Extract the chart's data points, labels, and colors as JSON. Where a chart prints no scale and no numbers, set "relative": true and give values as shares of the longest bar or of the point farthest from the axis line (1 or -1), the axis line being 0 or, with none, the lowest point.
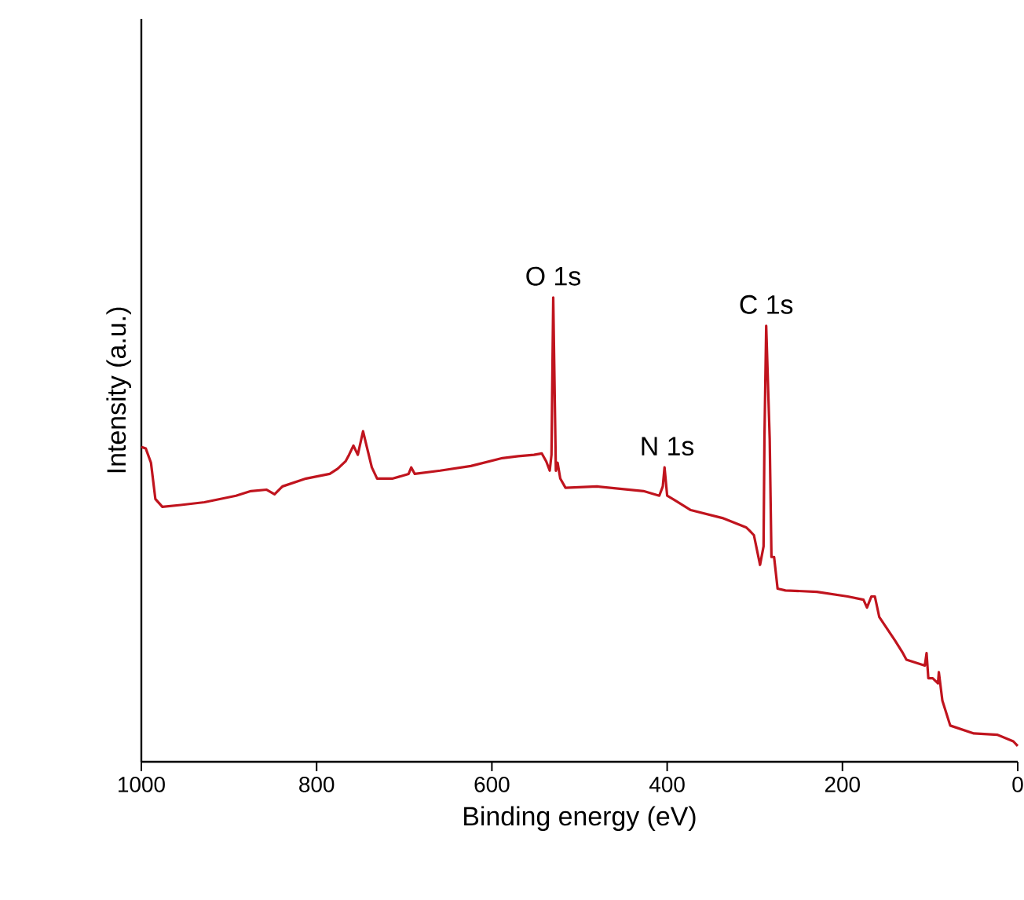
{
  "chart_data": {
    "type": "line",
    "relative": true,
    "xlabel": "Binding energy (eV)",
    "ylabel": "Intensity (a.u.)",
    "xlim": [
      1000,
      0
    ],
    "xticks": [
      1000,
      800,
      600,
      400,
      200,
      0
    ],
    "x": [
      1000,
      995,
      989,
      984,
      976,
      955,
      928,
      892,
      875,
      857,
      848,
      839,
      812,
      785,
      776,
      767,
      763,
      758,
      753,
      747,
      744,
      737,
      731,
      713,
      695,
      692,
      688,
      659,
      624,
      588,
      570,
      552,
      543,
      538,
      534,
      532,
      530,
      527,
      525,
      522,
      516,
      480,
      427,
      409,
      405,
      403,
      400,
      391,
      373,
      337,
      310,
      306,
      301,
      294,
      290,
      289,
      287,
      283,
      281,
      278,
      274,
      265,
      229,
      194,
      176,
      172,
      167,
      163,
      158,
      140,
      131,
      127,
      106,
      104,
      102,
      97,
      91,
      90,
      86,
      77,
      50,
      23,
      5,
      0
    ],
    "series": [
      {
        "color": "#c0141e",
        "values": [
          0.678,
          0.675,
          0.644,
          0.566,
          0.549,
          0.553,
          0.559,
          0.573,
          0.583,
          0.586,
          0.576,
          0.593,
          0.61,
          0.62,
          0.631,
          0.647,
          0.661,
          0.681,
          0.661,
          0.712,
          0.688,
          0.634,
          0.61,
          0.61,
          0.62,
          0.634,
          0.62,
          0.627,
          0.637,
          0.654,
          0.658,
          0.661,
          0.664,
          0.647,
          0.627,
          0.661,
          1.0,
          0.627,
          0.644,
          0.61,
          0.59,
          0.593,
          0.583,
          0.573,
          0.593,
          0.634,
          0.573,
          0.563,
          0.542,
          0.525,
          0.505,
          0.498,
          0.488,
          0.424,
          0.464,
          0.695,
          0.939,
          0.695,
          0.441,
          0.441,
          0.373,
          0.369,
          0.366,
          0.356,
          0.349,
          0.332,
          0.356,
          0.356,
          0.312,
          0.261,
          0.234,
          0.22,
          0.207,
          0.234,
          0.18,
          0.18,
          0.169,
          0.193,
          0.132,
          0.078,
          0.061,
          0.058,
          0.044,
          0.034
        ]
      }
    ],
    "annotations": [
      {
        "text": "O 1s",
        "x": 530,
        "y": 1.0
      },
      {
        "text": "N 1s",
        "x": 400,
        "y": 0.634
      },
      {
        "text": "C 1s",
        "x": 287,
        "y": 0.939
      }
    ],
    "grid": false,
    "marker": "none",
    "line_style": "solid"
  }
}
